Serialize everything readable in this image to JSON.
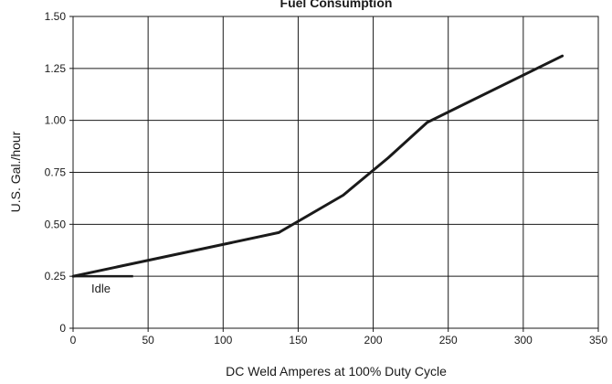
{
  "chart_data": {
    "type": "line",
    "title": "Fuel Consumption",
    "xlabel": "DC Weld Amperes at 100% Duty Cycle",
    "ylabel": "U.S. Gal./hour",
    "xlim": [
      0,
      350
    ],
    "ylim": [
      0,
      1.5
    ],
    "x_ticks": [
      0,
      50,
      100,
      150,
      200,
      250,
      300,
      350
    ],
    "x_tick_labels": [
      "0",
      "50",
      "100",
      "150",
      "200",
      "250",
      "300",
      "350"
    ],
    "y_ticks": [
      0,
      0.25,
      0.5,
      0.75,
      1.0,
      1.25,
      1.5
    ],
    "y_tick_labels": [
      "0",
      "0.25",
      "0.50",
      "0.75",
      "1.00",
      "1.25",
      "1.50"
    ],
    "grid": true,
    "series": [
      {
        "x": [
          0,
          137,
          180,
          210,
          236,
          326
        ],
        "y": [
          0.25,
          0.46,
          0.64,
          0.82,
          0.99,
          1.31
        ],
        "color": "#1a1a1a"
      }
    ],
    "annotations": [
      {
        "text": "Idle",
        "x_range": [
          0,
          40
        ],
        "y": 0.25
      }
    ]
  }
}
